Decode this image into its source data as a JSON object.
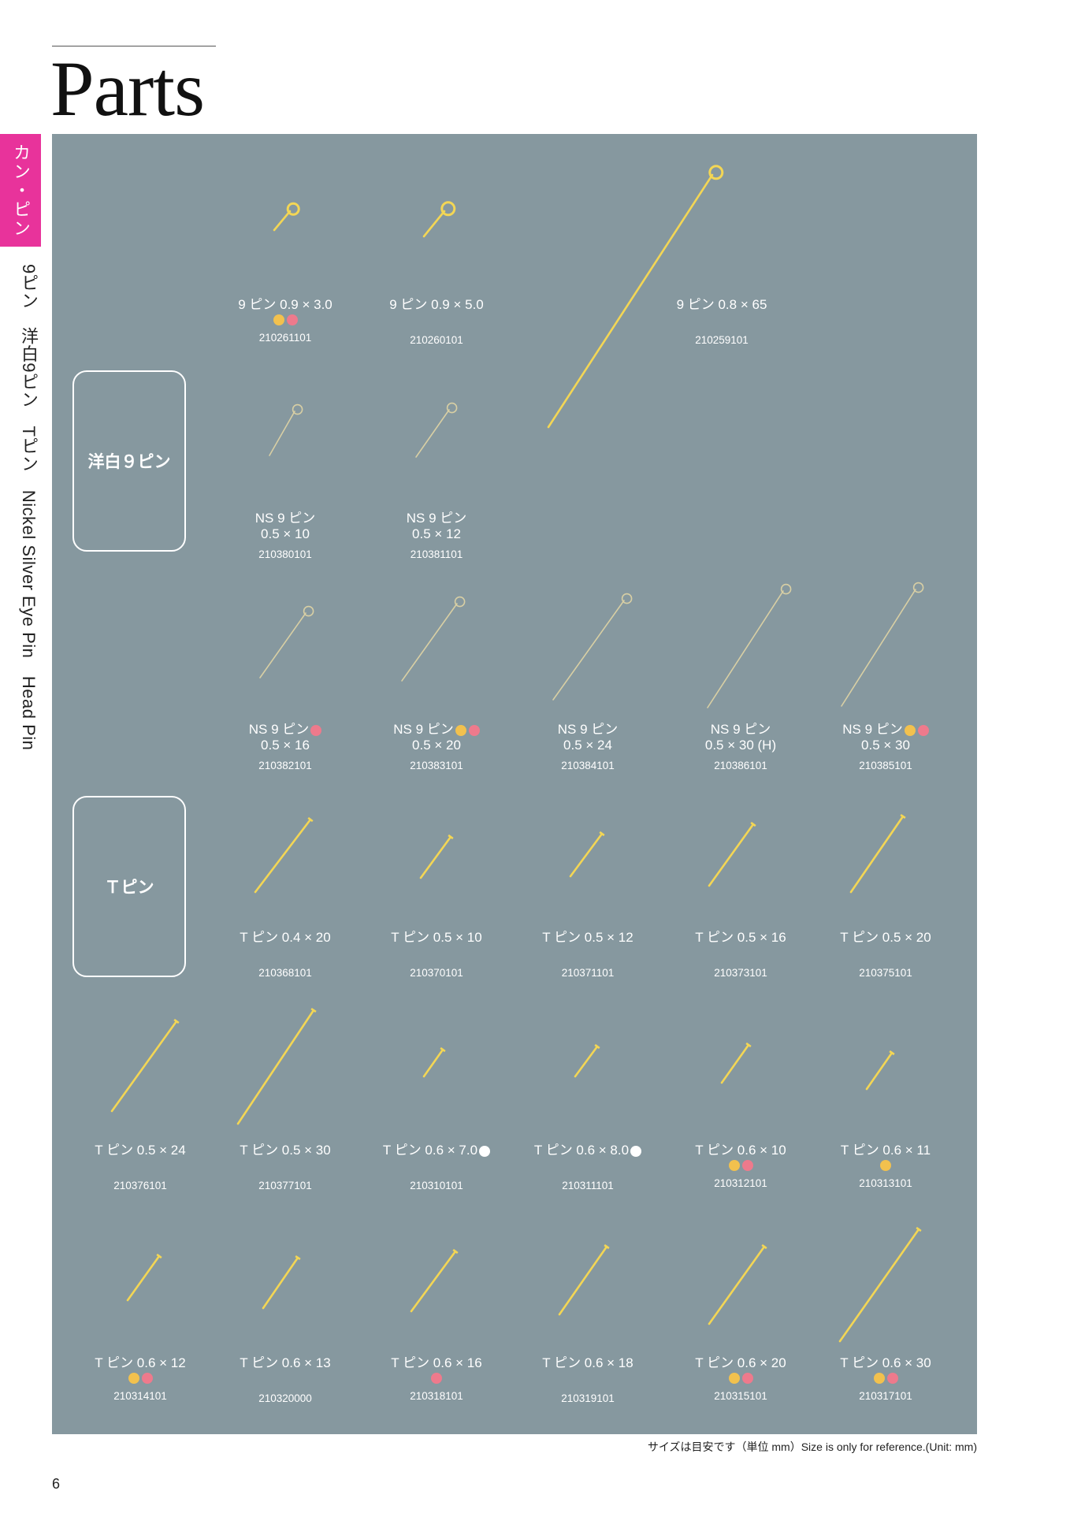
{
  "header": {
    "title": "Parts"
  },
  "category_tab": "カン・ピン",
  "side_index": "9ピン　洋白9ピン　Tピン　Nickel Silver Eye Pin　Head Pin",
  "colors": {
    "gold": "#f2c14e",
    "pink": "#ee7a8c",
    "white": "#ffffff",
    "panel": "#86989f",
    "tab": "#e8339b"
  },
  "sections": [
    {
      "id": "ns",
      "label": "洋白９ピン"
    },
    {
      "id": "t",
      "label": "Ｔピン"
    }
  ],
  "items": [
    {
      "name": "9 ピン 0.9 × 3.0",
      "size": "",
      "code": "210261101",
      "dots": [
        "gold",
        "pink"
      ],
      "dot_pos": "row"
    },
    {
      "name": "9 ピン 0.9 × 5.0",
      "size": "",
      "code": "210260101",
      "dots": [],
      "dot_pos": "row"
    },
    {
      "name": "9 ピン 0.8 × 65",
      "size": "",
      "code": "210259101",
      "dots": [],
      "dot_pos": "row"
    },
    {
      "name": "NS 9 ピン",
      "size": "0.5 × 10",
      "code": "210380101",
      "dots": [],
      "dot_pos": "inline"
    },
    {
      "name": "NS 9 ピン",
      "size": "0.5 × 12",
      "code": "210381101",
      "dots": [],
      "dot_pos": "inline"
    },
    {
      "name": "NS 9 ピン",
      "size": "0.5 × 16",
      "code": "210382101",
      "dots": [
        "pink"
      ],
      "dot_pos": "inline"
    },
    {
      "name": "NS 9 ピン",
      "size": "0.5 × 20",
      "code": "210383101",
      "dots": [
        "gold",
        "pink"
      ],
      "dot_pos": "inline"
    },
    {
      "name": "NS 9 ピン",
      "size": "0.5 × 24",
      "code": "210384101",
      "dots": [],
      "dot_pos": "inline"
    },
    {
      "name": "NS 9 ピン",
      "size": "0.5 × 30 (H)",
      "code": "210386101",
      "dots": [],
      "dot_pos": "inline"
    },
    {
      "name": "NS 9 ピン",
      "size": "0.5 × 30",
      "code": "210385101",
      "dots": [
        "gold",
        "pink"
      ],
      "dot_pos": "inline"
    },
    {
      "name": "T ピン 0.4 × 20",
      "size": "",
      "code": "210368101",
      "dots": [],
      "dot_pos": "row"
    },
    {
      "name": "T ピン 0.5 × 10",
      "size": "",
      "code": "210370101",
      "dots": [],
      "dot_pos": "row"
    },
    {
      "name": "T ピン 0.5 × 12",
      "size": "",
      "code": "210371101",
      "dots": [],
      "dot_pos": "row"
    },
    {
      "name": "T ピン 0.5 × 16",
      "size": "",
      "code": "210373101",
      "dots": [],
      "dot_pos": "row"
    },
    {
      "name": "T ピン 0.5 × 20",
      "size": "",
      "code": "210375101",
      "dots": [],
      "dot_pos": "row"
    },
    {
      "name": "T ピン 0.5 × 24",
      "size": "",
      "code": "210376101",
      "dots": [],
      "dot_pos": "row"
    },
    {
      "name": "T ピン 0.5 × 30",
      "size": "",
      "code": "210377101",
      "dots": [],
      "dot_pos": "row"
    },
    {
      "name": "T ピン 0.6 × 7.0",
      "size": "",
      "code": "210310101",
      "dots": [
        "white"
      ],
      "dot_pos": "inline"
    },
    {
      "name": "T ピン 0.6 × 8.0",
      "size": "",
      "code": "210311101",
      "dots": [
        "white"
      ],
      "dot_pos": "inline"
    },
    {
      "name": "T ピン 0.6 × 10",
      "size": "",
      "code": "210312101",
      "dots": [
        "gold",
        "pink"
      ],
      "dot_pos": "row"
    },
    {
      "name": "T ピン 0.6 × 11",
      "size": "",
      "code": "210313101",
      "dots": [
        "gold"
      ],
      "dot_pos": "row"
    },
    {
      "name": "T ピン 0.6 × 12",
      "size": "",
      "code": "210314101",
      "dots": [
        "gold",
        "pink"
      ],
      "dot_pos": "row"
    },
    {
      "name": "T ピン 0.6 × 13",
      "size": "",
      "code": "210320000",
      "dots": [],
      "dot_pos": "row"
    },
    {
      "name": "T ピン 0.6 × 16",
      "size": "",
      "code": "210318101",
      "dots": [
        "pink"
      ],
      "dot_pos": "row"
    },
    {
      "name": "T ピン 0.6 × 18",
      "size": "",
      "code": "210319101",
      "dots": [],
      "dot_pos": "row"
    },
    {
      "name": "T ピン 0.6 × 20",
      "size": "",
      "code": "210315101",
      "dots": [
        "gold",
        "pink"
      ],
      "dot_pos": "row"
    },
    {
      "name": "T ピン 0.6 × 30",
      "size": "",
      "code": "210317101",
      "dots": [
        "gold",
        "pink"
      ],
      "dot_pos": "row"
    }
  ],
  "footnote": "サイズは目安です（単位 mm）Size is only for reference.(Unit: mm)",
  "page_number": "6"
}
